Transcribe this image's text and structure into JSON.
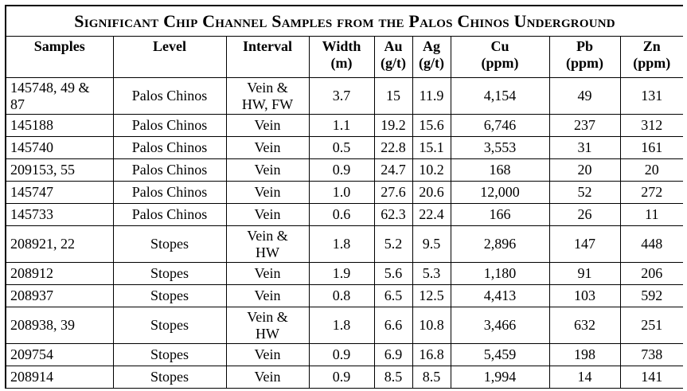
{
  "title": "Significant Chip Channel Samples from the Palos Chinos Underground",
  "columns": [
    [
      "Samples"
    ],
    [
      "Level"
    ],
    [
      "Interval"
    ],
    [
      "Width",
      "(m)"
    ],
    [
      "Au",
      "(g/t)"
    ],
    [
      "Ag",
      "(g/t)"
    ],
    [
      "Cu",
      "(ppm)"
    ],
    [
      "Pb",
      "(ppm)"
    ],
    [
      "Zn",
      "(ppm)"
    ]
  ],
  "rows": [
    {
      "samples": [
        "145748, 49 &",
        "87"
      ],
      "level": "Palos Chinos",
      "interval": [
        "Vein &",
        "HW, FW"
      ],
      "width": "3.7",
      "au": "15",
      "ag": "11.9",
      "cu": "4,154",
      "pb": "49",
      "zn": "131"
    },
    {
      "samples": [
        "145188"
      ],
      "level": "Palos Chinos",
      "interval": [
        "Vein"
      ],
      "width": "1.1",
      "au": "19.2",
      "ag": "15.6",
      "cu": "6,746",
      "pb": "237",
      "zn": "312"
    },
    {
      "samples": [
        "145740"
      ],
      "level": "Palos Chinos",
      "interval": [
        "Vein"
      ],
      "width": "0.5",
      "au": "22.8",
      "ag": "15.1",
      "cu": "3,553",
      "pb": "31",
      "zn": "161"
    },
    {
      "samples": [
        "209153, 55"
      ],
      "level": "Palos Chinos",
      "interval": [
        "Vein"
      ],
      "width": "0.9",
      "au": "24.7",
      "ag": "10.2",
      "cu": "168",
      "pb": "20",
      "zn": "20"
    },
    {
      "samples": [
        "145747"
      ],
      "level": "Palos Chinos",
      "interval": [
        "Vein"
      ],
      "width": "1.0",
      "au": "27.6",
      "ag": "20.6",
      "cu": "12,000",
      "pb": "52",
      "zn": "272"
    },
    {
      "samples": [
        "145733"
      ],
      "level": "Palos Chinos",
      "interval": [
        "Vein"
      ],
      "width": "0.6",
      "au": "62.3",
      "ag": "22.4",
      "cu": "166",
      "pb": "26",
      "zn": "11"
    },
    {
      "samples": [
        "208921, 22"
      ],
      "level": "Stopes",
      "interval": [
        "Vein &",
        "HW"
      ],
      "width": "1.8",
      "au": "5.2",
      "ag": "9.5",
      "cu": "2,896",
      "pb": "147",
      "zn": "448"
    },
    {
      "samples": [
        "208912"
      ],
      "level": "Stopes",
      "interval": [
        "Vein"
      ],
      "width": "1.9",
      "au": "5.6",
      "ag": "5.3",
      "cu": "1,180",
      "pb": "91",
      "zn": "206"
    },
    {
      "samples": [
        "208937"
      ],
      "level": "Stopes",
      "interval": [
        "Vein"
      ],
      "width": "0.8",
      "au": "6.5",
      "ag": "12.5",
      "cu": "4,413",
      "pb": "103",
      "zn": "592"
    },
    {
      "samples": [
        "208938, 39"
      ],
      "level": "Stopes",
      "interval": [
        "Vein &",
        "HW"
      ],
      "width": "1.8",
      "au": "6.6",
      "ag": "10.8",
      "cu": "3,466",
      "pb": "632",
      "zn": "251"
    },
    {
      "samples": [
        "209754"
      ],
      "level": "Stopes",
      "interval": [
        "Vein"
      ],
      "width": "0.9",
      "au": "6.9",
      "ag": "16.8",
      "cu": "5,459",
      "pb": "198",
      "zn": "738"
    },
    {
      "samples": [
        "208914"
      ],
      "level": "Stopes",
      "interval": [
        "Vein"
      ],
      "width": "0.9",
      "au": "8.5",
      "ag": "8.5",
      "cu": "1,994",
      "pb": "14",
      "zn": "141"
    }
  ]
}
